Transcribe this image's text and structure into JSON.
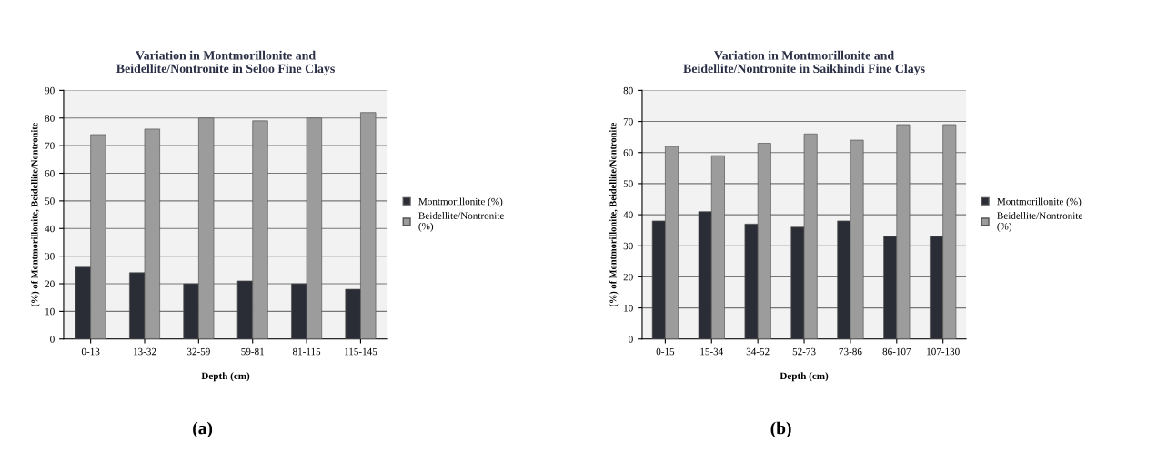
{
  "chart_data": [
    {
      "type": "bar",
      "title": "Variation in Montmorillonite and\nBeidellite/Nontronite in Seloo Fine Clays",
      "xlabel": "Depth (cm)",
      "ylabel": "(%) of Montmorillonite, Beidellite/Nontronite",
      "categories": [
        "0-13",
        "13-32",
        "32-59",
        "59-81",
        "81-115",
        "115-145"
      ],
      "series": [
        {
          "name": "Montmorillonite (%)",
          "color": "#2b2d36",
          "values": [
            26,
            24,
            20,
            21,
            20,
            18
          ]
        },
        {
          "name": "Beidellite/Nontronite\n(%)",
          "color": "#9c9c9c",
          "values": [
            74,
            76,
            80,
            79,
            80,
            82
          ]
        }
      ],
      "ylim": [
        0,
        90
      ],
      "yticks": [
        0,
        10,
        20,
        30,
        40,
        50,
        60,
        70,
        80,
        90
      ],
      "grid": "y",
      "legend": "right",
      "annotations": [
        "(a)"
      ]
    },
    {
      "type": "bar",
      "title": "Variation in Montmorillonite and\nBeidellite/Nontronite in Saikhindi Fine Clays",
      "xlabel": "Depth (cm)",
      "ylabel": "(%) of Montmorillonite, Beidellite/Nontronite",
      "categories": [
        "0-15",
        "15-34",
        "34-52",
        "52-73",
        "73-86",
        "86-107",
        "107-130"
      ],
      "series": [
        {
          "name": "Montmorillonite (%)",
          "color": "#2b2d36",
          "values": [
            38,
            41,
            37,
            36,
            38,
            33,
            33
          ]
        },
        {
          "name": "Beidellite/Nontronite\n(%)",
          "color": "#9c9c9c",
          "values": [
            62,
            59,
            63,
            66,
            64,
            69,
            69
          ]
        }
      ],
      "ylim": [
        0,
        80
      ],
      "yticks": [
        0,
        10,
        20,
        30,
        40,
        50,
        60,
        70,
        80
      ],
      "grid": "y",
      "legend": "right",
      "annotations": [
        "(b)"
      ]
    }
  ]
}
